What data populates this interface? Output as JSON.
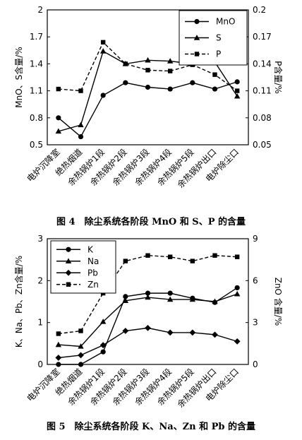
{
  "chart_data": [
    {
      "type": "line",
      "caption": "图 4　除尘系统各阶段 MnO 和 S、P 的含量",
      "categories": [
        "电炉沉降室",
        "绝热烟道",
        "余热锅炉1段",
        "余热锅炉2段",
        "余热锅炉3段",
        "余热锅炉4段",
        "余热锅炉5段",
        "余热锅炉出口",
        "电炉除尘口"
      ],
      "ylabel": "MnO、S含量/%",
      "y2label": "P含量/%",
      "ylim": [
        0.5,
        2
      ],
      "yticks": [
        "0.5",
        "0.8",
        "1.1",
        "1.4",
        "1.7",
        "2"
      ],
      "y2lim": [
        0.05,
        0.2
      ],
      "y2ticks": [
        "0.05",
        "0.08",
        "0.11",
        "0.14",
        "0.17",
        "0.2"
      ],
      "grid": false,
      "legend": "top-right",
      "series": [
        {
          "name": "MnO",
          "axis": "left",
          "marker": "circle",
          "dash": "solid",
          "values": [
            0.8,
            0.59,
            1.05,
            1.19,
            1.14,
            1.12,
            1.19,
            1.12,
            1.2
          ]
        },
        {
          "name": "S",
          "axis": "left",
          "marker": "triangle",
          "dash": "solid",
          "values": [
            0.65,
            0.72,
            1.54,
            1.4,
            1.44,
            1.43,
            1.4,
            1.42,
            1.04
          ]
        },
        {
          "name": "P",
          "axis": "right",
          "marker": "square",
          "dash": "dashed",
          "values": [
            0.112,
            0.11,
            0.164,
            0.14,
            0.133,
            0.132,
            0.139,
            0.128,
            0.11
          ]
        }
      ]
    },
    {
      "type": "line",
      "caption": "图 5　除尘系统各阶段 K、Na、Zn 和 Pb 的含量",
      "categories": [
        "电炉沉降室",
        "绝热烟道",
        "余热锅炉1段",
        "余热锅炉2段",
        "余热锅炉3段",
        "余热锅炉4段",
        "余热锅炉5段",
        "余热锅炉出口",
        "电炉除尘口"
      ],
      "ylabel": "K、Na、Pb、Zn含量/%",
      "y2label": "ZnO 含量/%",
      "ylim": [
        0,
        3
      ],
      "yticks": [
        "0",
        "1",
        "2",
        "3"
      ],
      "y2lim": [
        0,
        9
      ],
      "y2ticks": [
        "0",
        "3",
        "6",
        "9"
      ],
      "grid": false,
      "legend": "top-left",
      "series": [
        {
          "name": "K",
          "axis": "left",
          "marker": "circle",
          "dash": "solid",
          "values": [
            0.0,
            0.0,
            0.3,
            1.62,
            1.7,
            1.7,
            1.58,
            1.48,
            1.83
          ]
        },
        {
          "name": "Na",
          "axis": "left",
          "marker": "triangle",
          "dash": "solid",
          "values": [
            0.47,
            0.43,
            1.02,
            1.52,
            1.6,
            1.55,
            1.55,
            1.5,
            1.68
          ]
        },
        {
          "name": "Pb",
          "axis": "left",
          "marker": "diamond",
          "dash": "solid",
          "values": [
            0.16,
            0.22,
            0.46,
            0.8,
            0.87,
            0.76,
            0.76,
            0.71,
            0.55
          ]
        },
        {
          "name": "Zn",
          "axis": "right",
          "marker": "square",
          "dash": "dashed",
          "values": [
            2.2,
            2.4,
            5.1,
            7.4,
            7.8,
            7.7,
            7.4,
            7.8,
            7.7
          ]
        }
      ]
    }
  ]
}
